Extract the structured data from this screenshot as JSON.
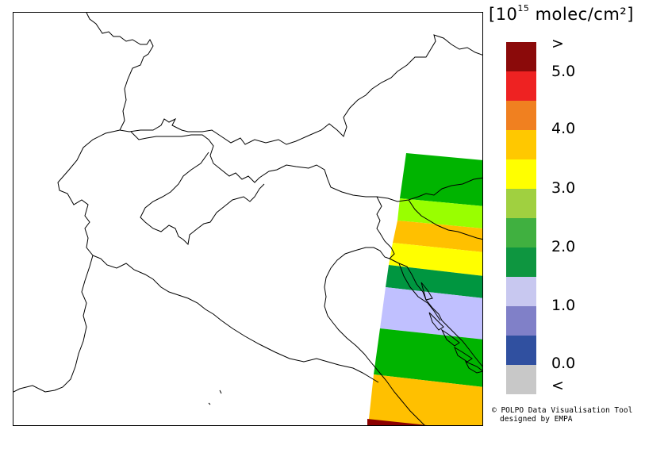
{
  "legend": {
    "units_base": "[10",
    "units_exp": "15",
    "units_rest": " molec/cm²]",
    "colors": [
      "#8b0a0a",
      "#ee2222",
      "#f08020",
      "#ffc800",
      "#ffff00",
      "#a0d040",
      "#40b040",
      "#0e9640",
      "#c8c8f0",
      "#8080c8",
      "#3050a0",
      "#c8c8c8"
    ],
    "labels": [
      ">",
      "5.0",
      "4.0",
      "3.0",
      "2.0",
      "1.0",
      "0.0",
      "<"
    ]
  },
  "swath_colors": [
    "#00b400",
    "#99ff00",
    "#ffc000",
    "#ffff00",
    "#009640",
    "#c0c0ff",
    "#00b400",
    "#ffc000",
    "#8b0000"
  ],
  "credit": {
    "line1": "© POLPO Data Visualisation Tool",
    "line2": "designed by EMPA"
  }
}
